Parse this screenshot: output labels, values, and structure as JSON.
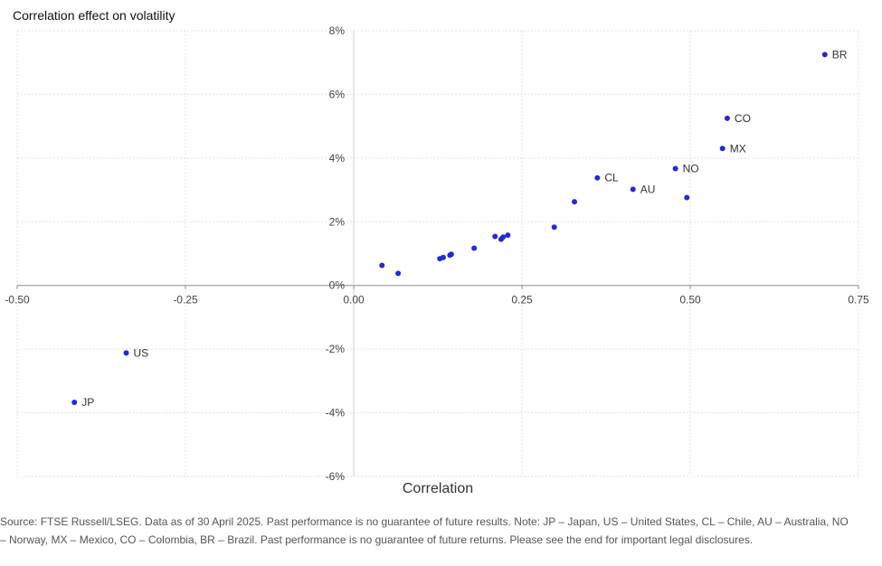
{
  "chart_data": {
    "type": "scatter",
    "title": "Correlation effect on volatility",
    "xlabel": "Correlation",
    "ylabel": "",
    "xlim": [
      -0.5,
      0.75
    ],
    "ylim": [
      -6,
      8
    ],
    "x_ticks": [
      "-0.50",
      "-0.25",
      "0.00",
      "0.25",
      "0.50",
      "0.75"
    ],
    "y_ticks": [
      "8%",
      "6%",
      "4%",
      "2%",
      "0%",
      "-2%",
      "-4%",
      "-6%"
    ],
    "grid": true,
    "marker_color": "#1f2bd6",
    "points": [
      {
        "x": 0.7,
        "y": 7.25,
        "label": "BR"
      },
      {
        "x": 0.555,
        "y": 5.25,
        "label": "CO"
      },
      {
        "x": 0.548,
        "y": 4.3,
        "label": "MX"
      },
      {
        "x": 0.478,
        "y": 3.67,
        "label": "NO"
      },
      {
        "x": 0.362,
        "y": 3.38,
        "label": "CL"
      },
      {
        "x": 0.415,
        "y": 3.02,
        "label": "AU"
      },
      {
        "x": 0.495,
        "y": 2.76,
        "label": ""
      },
      {
        "x": 0.328,
        "y": 2.63,
        "label": ""
      },
      {
        "x": 0.298,
        "y": 1.83,
        "label": ""
      },
      {
        "x": 0.229,
        "y": 1.58,
        "label": ""
      },
      {
        "x": 0.21,
        "y": 1.54,
        "label": ""
      },
      {
        "x": 0.222,
        "y": 1.52,
        "label": ""
      },
      {
        "x": 0.219,
        "y": 1.45,
        "label": ""
      },
      {
        "x": 0.179,
        "y": 1.17,
        "label": ""
      },
      {
        "x": 0.145,
        "y": 0.98,
        "label": ""
      },
      {
        "x": 0.143,
        "y": 0.95,
        "label": ""
      },
      {
        "x": 0.133,
        "y": 0.88,
        "label": ""
      },
      {
        "x": 0.128,
        "y": 0.84,
        "label": ""
      },
      {
        "x": 0.042,
        "y": 0.63,
        "label": ""
      },
      {
        "x": 0.066,
        "y": 0.38,
        "label": ""
      },
      {
        "x": -0.338,
        "y": -2.12,
        "label": "US"
      },
      {
        "x": -0.415,
        "y": -3.67,
        "label": "JP"
      }
    ]
  },
  "footnote": {
    "line1": "Source: FTSE Russell/LSEG. Data as of 30 April 2025. Past performance is no guarantee of future results. Note: JP – Japan, US – United States, CL – Chile, AU – Australia, NO",
    "line2": "– Norway, MX – Mexico, CO – Colombia, BR – Brazil. Past performance is no guarantee of future returns. Please see the end for important legal disclosures."
  }
}
